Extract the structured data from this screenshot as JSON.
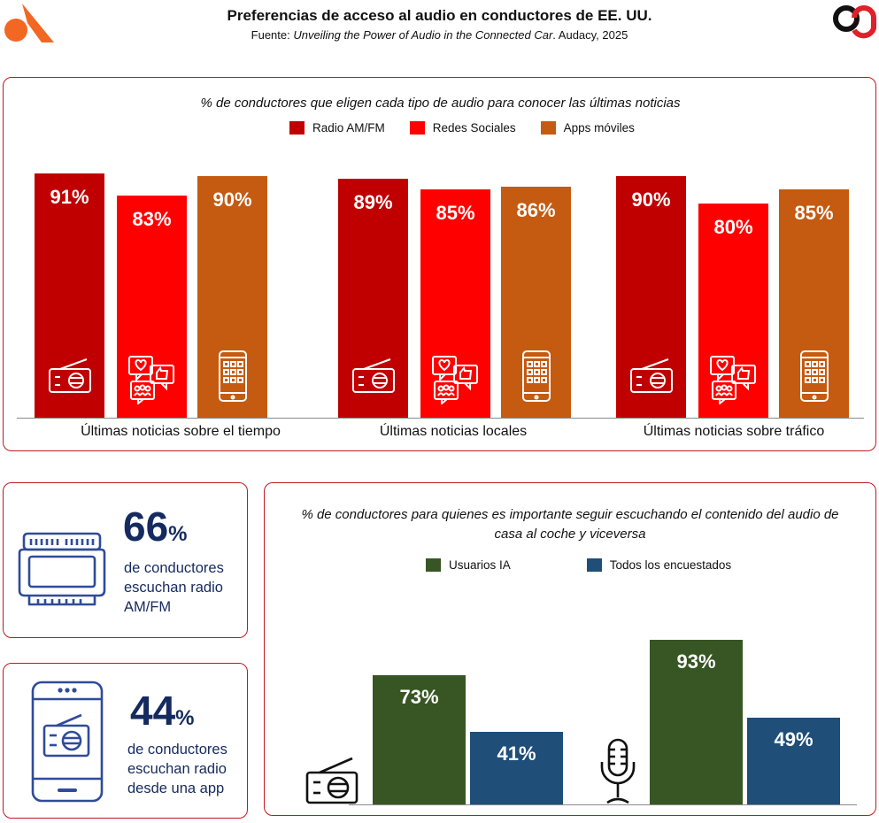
{
  "header": {
    "title": "Preferencias de acceso al audio en conductores de EE. UU.",
    "source_prefix": "Fuente: ",
    "source_italic": "Unveiling the Power of Audio in the Connected Car",
    "source_suffix": ". Audacy, 2025"
  },
  "colors": {
    "radio": "#c00000",
    "social": "#ff0000",
    "apps": "#c55a11",
    "ia_users": "#375623",
    "all_respondents": "#1f4e79",
    "accent_border": "#c0191f",
    "stat_text": "#152a5e"
  },
  "chart_data": [
    {
      "type": "bar",
      "title": "% de conductores que eligen cada tipo de audio para conocer las últimas noticias",
      "categories": [
        "Últimas noticias sobre el tiempo",
        "Últimas noticias locales",
        "Últimas noticias sobre tráfico"
      ],
      "series": [
        {
          "name": "Radio AM/FM",
          "values": [
            91,
            89,
            90
          ],
          "labels": [
            "91%",
            "89%",
            "90%"
          ],
          "icon": "radio-icon"
        },
        {
          "name": "Redes Sociales",
          "values": [
            83,
            85,
            80
          ],
          "labels": [
            "83%",
            "85%",
            "80%"
          ],
          "icon": "social-media-icon"
        },
        {
          "name": "Apps móviles",
          "values": [
            90,
            86,
            85
          ],
          "labels": [
            "90%",
            "86%",
            "85%"
          ],
          "icon": "smartphone-apps-icon"
        }
      ],
      "ylim": [
        0,
        100
      ]
    },
    {
      "type": "bar",
      "title": "% de conductores para quienes es importante seguir escuchando el contenido del audio de casa al coche y viceversa",
      "categories": [
        "Radio",
        "Podcast"
      ],
      "category_icons": [
        "radio-icon",
        "microphone-icon"
      ],
      "series": [
        {
          "name": "Usuarios IA",
          "values": [
            73,
            93
          ],
          "labels": [
            "73%",
            "93%"
          ]
        },
        {
          "name": "Todos los encuestados",
          "values": [
            41,
            49
          ],
          "labels": [
            "41%",
            "49%"
          ]
        }
      ],
      "ylim": [
        0,
        100
      ]
    }
  ],
  "stats": [
    {
      "number": "66",
      "pct": "%",
      "lines": [
        "de conductores",
        "escuchan radio",
        "AM/FM"
      ],
      "icon": "car-radio-icon"
    },
    {
      "number": "44",
      "pct": "%",
      "lines": [
        "de conductores",
        "escuchan radio",
        "desde una app"
      ],
      "icon": "phone-radio-icon"
    }
  ]
}
